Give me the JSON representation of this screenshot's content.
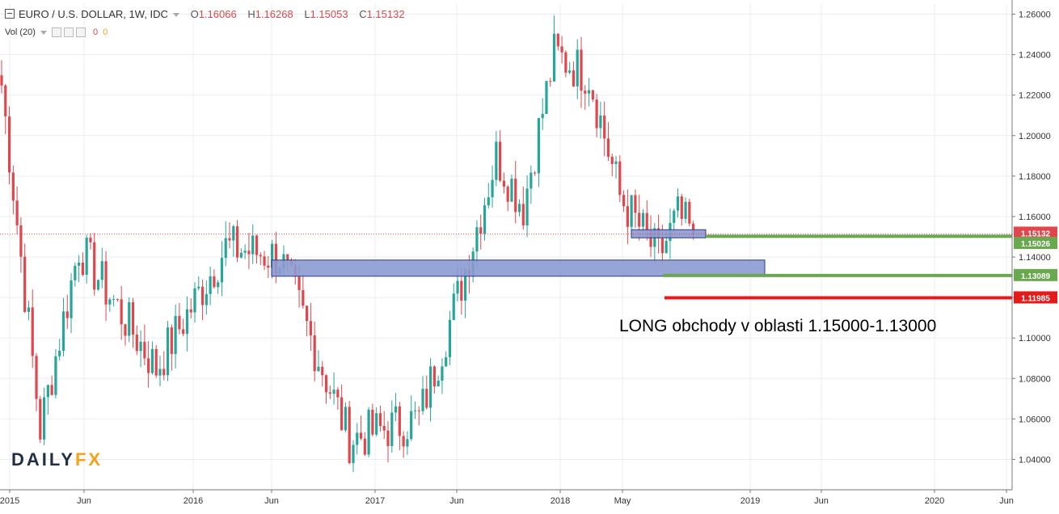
{
  "header": {
    "symbol": "EURO / U.S. DOLLAR, 1W, IDC",
    "open_label": "O",
    "open": "1.16066",
    "high_label": "H",
    "high": "1.16268",
    "low_label": "L",
    "low": "1.15053",
    "close_label": "C",
    "close": "1.15132"
  },
  "volume": {
    "label": "Vol (20)",
    "value1": "0",
    "value2": "0"
  },
  "annotation": "LONG obchody v oblasti  1.15000-1.13000",
  "logo": {
    "part1": "DAILY",
    "part2": "FX"
  },
  "colors": {
    "up": "#26a69a",
    "down": "#e0474c",
    "zone": "#8b9bd0",
    "support": "#6aa84f",
    "stop": "#e31b1b",
    "last_price": "#e0474c"
  },
  "chart_data": {
    "type": "candlestick",
    "title": "EURO / U.S. DOLLAR, 1W, IDC",
    "ylim": [
      1.025,
      1.265
    ],
    "y_ticks": [
      "1.04000",
      "1.06000",
      "1.08000",
      "1.10000",
      "1.12000",
      "1.14000",
      "1.16000",
      "1.18000",
      "1.20000",
      "1.22000",
      "1.24000",
      "1.26000"
    ],
    "x_ticks": [
      "2015",
      "Jun",
      "2016",
      "Jun",
      "2017",
      "Jun",
      "2018",
      "May",
      "2019",
      "Jun",
      "2020",
      "Jun"
    ],
    "key_points": [
      {
        "week": 0,
        "close": 1.225
      },
      {
        "week": 10,
        "close": 1.055
      },
      {
        "week": 20,
        "close": 1.145
      },
      {
        "week": 40,
        "close": 1.085
      },
      {
        "week": 58,
        "close": 1.145
      },
      {
        "week": 72,
        "close": 1.14
      },
      {
        "week": 90,
        "close": 1.05
      },
      {
        "week": 108,
        "close": 1.06
      },
      {
        "week": 118,
        "close": 1.12
      },
      {
        "week": 128,
        "close": 1.19
      },
      {
        "week": 135,
        "close": 1.165
      },
      {
        "week": 143,
        "close": 1.24
      },
      {
        "week": 152,
        "close": 1.23
      },
      {
        "week": 160,
        "close": 1.17
      },
      {
        "week": 170,
        "close": 1.14
      },
      {
        "week": 175,
        "close": 1.16
      },
      {
        "week": 179,
        "close": 1.151
      }
    ],
    "zones": [
      {
        "name": "",
        "from": 1.1535,
        "to": 1.1495
      },
      {
        "name": "",
        "from": 1.1385,
        "to": 1.1305
      }
    ],
    "levels": [
      {
        "label": "1.15026",
        "value": 1.15026,
        "color": "#6aa84f"
      },
      {
        "label": "1.13089",
        "value": 1.13089,
        "color": "#6aa84f"
      },
      {
        "label": "1.11985",
        "value": 1.11985,
        "color": "#e31b1b"
      }
    ],
    "last_price": {
      "label": "1.15132",
      "value": 1.15132
    }
  }
}
